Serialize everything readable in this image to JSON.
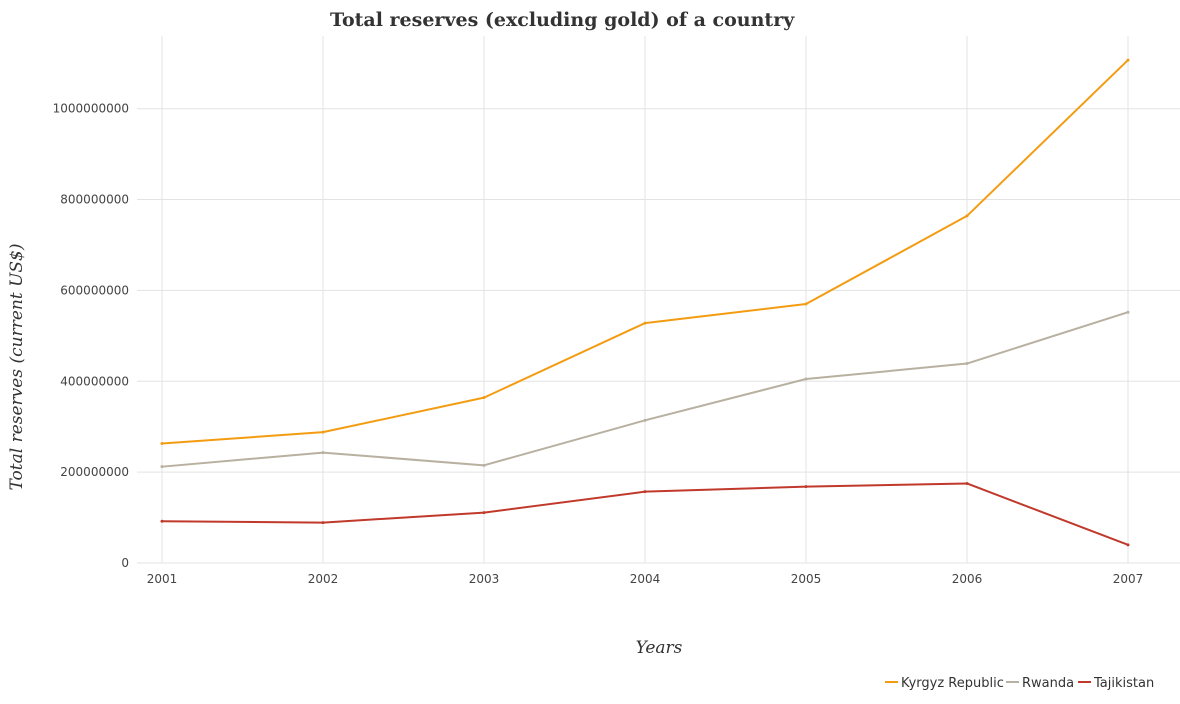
{
  "chart_data": {
    "type": "line",
    "title": "Total reserves (excluding gold) of a country",
    "xlabel": "Years",
    "ylabel": "Total reserves (current US$)",
    "categories": [
      "2001",
      "2002",
      "2003",
      "2004",
      "2005",
      "2006",
      "2007"
    ],
    "ylim": [
      0,
      1160000000
    ],
    "yticks": [
      0,
      200000000,
      400000000,
      600000000,
      800000000,
      1000000000
    ],
    "ytick_labels": [
      "0",
      "200000000",
      "400000000",
      "600000000",
      "800000000",
      "1000000000"
    ],
    "grid": true,
    "legend_position": "bottom-right",
    "series": [
      {
        "name": "Kyrgyz Republic",
        "color": "#f39c12",
        "values": [
          263000000,
          288000000,
          364000000,
          528000000,
          570000000,
          764000000,
          1107000000
        ]
      },
      {
        "name": "Rwanda",
        "color": "#b8b0a0",
        "values": [
          212000000,
          243000000,
          215000000,
          314000000,
          405000000,
          439000000,
          552000000
        ]
      },
      {
        "name": "Tajikistan",
        "color": "#c0392b",
        "values": [
          92000000,
          89000000,
          111000000,
          157000000,
          168000000,
          175000000,
          40000000
        ]
      }
    ]
  }
}
